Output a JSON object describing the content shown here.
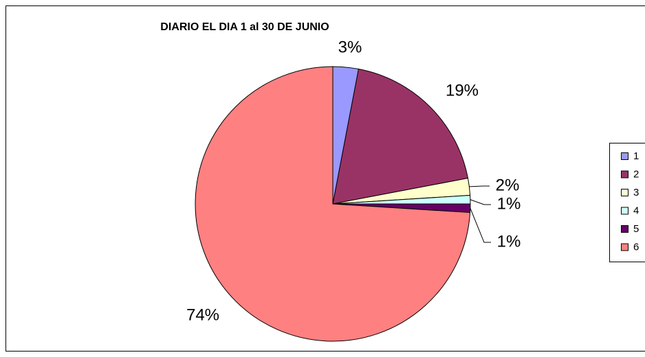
{
  "chart_data": {
    "type": "pie",
    "title": "DIARIO EL DIA 1 al 30 DE JUNIO",
    "categories": [
      "1",
      "2",
      "3",
      "4",
      "5",
      "6"
    ],
    "values": [
      3,
      19,
      2,
      1,
      1,
      74
    ],
    "value_labels": [
      "3%",
      "19%",
      "2%",
      "1%",
      "1%",
      "74%"
    ],
    "colors": [
      "#9999ff",
      "#993366",
      "#ffffcc",
      "#ccffff",
      "#660066",
      "#ff8080"
    ],
    "legend": "right"
  }
}
